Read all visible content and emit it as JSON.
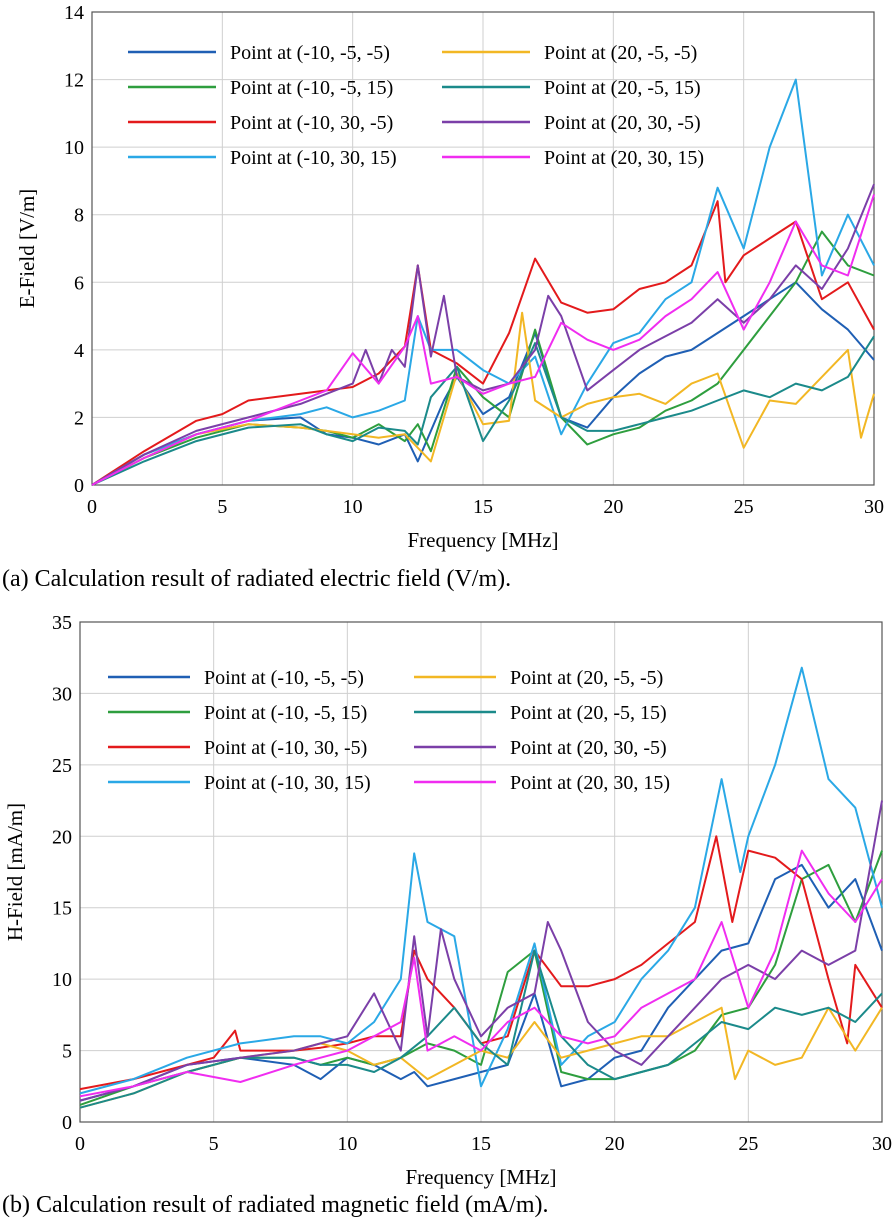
{
  "figure": {
    "caption_a": "(a) Calculation result of radiated electric field (V/m).",
    "caption_b": "(b) Calculation result of radiated magnetic field (mA/m)."
  },
  "chart_data": [
    {
      "type": "line",
      "xlabel": "Frequency [MHz]",
      "ylabel": "E-Field [V/m]",
      "xlim": [
        0,
        30
      ],
      "ylim": [
        0,
        14
      ],
      "xticks": [
        "0",
        "5",
        "10",
        "15",
        "20",
        "25",
        "30"
      ],
      "yticks": [
        "0",
        "2",
        "4",
        "6",
        "8",
        "10",
        "12",
        "14"
      ],
      "grid": true,
      "legend_position": "top-left",
      "series": [
        {
          "name": "Point at (-10, -5, -5)",
          "color": "#1f5fb4",
          "x": [
            0,
            2,
            4,
            6,
            8,
            9,
            10,
            11,
            12,
            12.5,
            13,
            13.5,
            14,
            15,
            16,
            17,
            18,
            19,
            20,
            21,
            22,
            23,
            24,
            25,
            26,
            27,
            28,
            29,
            30
          ],
          "y": [
            0,
            0.9,
            1.5,
            1.9,
            2.0,
            1.5,
            1.4,
            1.2,
            1.5,
            0.7,
            1.6,
            2.5,
            3.2,
            2.1,
            2.6,
            4.5,
            2.0,
            1.7,
            2.6,
            3.3,
            3.8,
            4.0,
            4.5,
            5.0,
            5.5,
            6.0,
            5.2,
            4.6,
            3.7
          ]
        },
        {
          "name": "Point at (-10, -5, 15)",
          "color": "#2e9e3e",
          "x": [
            0,
            2,
            4,
            6,
            8,
            9,
            10,
            11,
            12,
            12.5,
            13,
            14,
            15,
            16,
            17,
            18,
            19,
            20,
            21,
            22,
            23,
            24,
            25,
            26,
            27,
            28,
            29,
            30
          ],
          "y": [
            0,
            0.8,
            1.4,
            1.8,
            1.7,
            1.6,
            1.4,
            1.8,
            1.3,
            1.8,
            1.0,
            3.5,
            2.6,
            2.0,
            4.6,
            2.0,
            1.2,
            1.5,
            1.7,
            2.2,
            2.5,
            3.0,
            4.0,
            5.0,
            6.0,
            7.5,
            6.5,
            6.2
          ]
        },
        {
          "name": "Point at (-10, 30, -5)",
          "color": "#e31a1c",
          "x": [
            0,
            2,
            4,
            5,
            6,
            8,
            9,
            10,
            11,
            12,
            12.5,
            13,
            14,
            15,
            16,
            17,
            18,
            19,
            20,
            21,
            22,
            23,
            24,
            24.3,
            25,
            26,
            27,
            28,
            29,
            30
          ],
          "y": [
            0,
            1.0,
            1.9,
            2.1,
            2.5,
            2.7,
            2.8,
            2.9,
            3.3,
            4.1,
            6.5,
            4.0,
            3.6,
            3.0,
            4.5,
            6.7,
            5.4,
            5.1,
            5.2,
            5.8,
            6.0,
            6.5,
            8.4,
            6.0,
            6.8,
            7.3,
            7.8,
            5.5,
            6.0,
            4.6
          ]
        },
        {
          "name": "Point at (-10, 30, 15)",
          "color": "#2aa8e6",
          "x": [
            0,
            2,
            4,
            6,
            8,
            9,
            10,
            11,
            12,
            12.5,
            13,
            14,
            15,
            16,
            17,
            18,
            19,
            20,
            21,
            22,
            23,
            24,
            25,
            26,
            27,
            28,
            29,
            30
          ],
          "y": [
            0,
            0.9,
            1.5,
            1.9,
            2.1,
            2.3,
            2.0,
            2.2,
            2.5,
            5.0,
            4.0,
            4.0,
            3.4,
            3.0,
            3.8,
            1.5,
            3.0,
            4.2,
            4.5,
            5.5,
            6.0,
            8.8,
            7.0,
            10.0,
            12.0,
            6.2,
            8.0,
            6.5
          ]
        },
        {
          "name": "Point at (20, -5, -5)",
          "color": "#f2b724",
          "x": [
            0,
            2,
            4,
            6,
            8,
            9,
            10,
            11,
            12,
            13,
            13.5,
            14,
            15,
            16,
            16.5,
            17,
            18,
            19,
            20,
            21,
            22,
            23,
            24,
            25,
            26,
            27,
            28,
            29,
            29.5,
            30
          ],
          "y": [
            0,
            0.8,
            1.5,
            1.8,
            1.7,
            1.6,
            1.5,
            1.4,
            1.5,
            0.7,
            2.0,
            3.3,
            1.8,
            1.9,
            5.1,
            2.5,
            2.0,
            2.4,
            2.6,
            2.7,
            2.4,
            3.0,
            3.3,
            1.1,
            2.5,
            2.4,
            3.2,
            4.0,
            1.4,
            2.7
          ]
        },
        {
          "name": "Point at (20, -5, 15)",
          "color": "#1b8a8a",
          "x": [
            0,
            2,
            4,
            6,
            8,
            9,
            10,
            11,
            12,
            12.5,
            13,
            14,
            15,
            16,
            17,
            18,
            19,
            20,
            21,
            22,
            23,
            24,
            25,
            26,
            27,
            28,
            29,
            30
          ],
          "y": [
            0,
            0.7,
            1.3,
            1.7,
            1.8,
            1.5,
            1.3,
            1.7,
            1.6,
            1.2,
            2.6,
            3.5,
            1.3,
            2.5,
            4.2,
            2.0,
            1.6,
            1.6,
            1.8,
            2.0,
            2.2,
            2.5,
            2.8,
            2.6,
            3.0,
            2.8,
            3.2,
            4.4
          ]
        },
        {
          "name": "Point at (20, 30, -5)",
          "color": "#7b3fa8",
          "x": [
            0,
            2,
            4,
            6,
            8,
            9,
            10,
            10.5,
            11,
            11.5,
            12,
            12.5,
            13,
            13.5,
            14,
            15,
            16,
            17,
            17.5,
            18,
            19,
            20,
            21,
            22,
            23,
            24,
            25,
            26,
            27,
            28,
            29,
            30
          ],
          "y": [
            0,
            0.9,
            1.6,
            2.0,
            2.4,
            2.7,
            3.0,
            4.0,
            3.0,
            4.0,
            3.5,
            6.5,
            3.8,
            5.6,
            3.2,
            2.8,
            3.0,
            4.0,
            5.6,
            5.0,
            2.8,
            3.4,
            4.0,
            4.4,
            4.8,
            5.5,
            4.8,
            5.5,
            6.5,
            5.8,
            7.0,
            8.9
          ]
        },
        {
          "name": "Point at (20, 30, 15)",
          "color": "#f02df0",
          "x": [
            0,
            2,
            4,
            6,
            8,
            9,
            10,
            11,
            12,
            12.5,
            13,
            14,
            15,
            16,
            17,
            18,
            19,
            20,
            21,
            22,
            23,
            24,
            25,
            26,
            27,
            28,
            29,
            30
          ],
          "y": [
            0,
            0.8,
            1.5,
            1.9,
            2.5,
            2.8,
            3.9,
            3.0,
            4.1,
            5.0,
            3.0,
            3.2,
            2.7,
            3.0,
            3.2,
            4.8,
            4.3,
            4.0,
            4.3,
            5.0,
            5.5,
            6.3,
            4.6,
            6.0,
            7.8,
            6.5,
            6.2,
            8.6
          ]
        }
      ]
    },
    {
      "type": "line",
      "xlabel": "Frequency [MHz]",
      "ylabel": "H-Field [mA/m]",
      "xlim": [
        0,
        30
      ],
      "ylim": [
        0,
        35
      ],
      "xticks": [
        "0",
        "5",
        "10",
        "15",
        "20",
        "25",
        "30"
      ],
      "yticks": [
        "0",
        "5",
        "10",
        "15",
        "20",
        "25",
        "30",
        "35"
      ],
      "grid": true,
      "legend_position": "top-left",
      "series": [
        {
          "name": "Point at (-10, -5, -5)",
          "color": "#1f5fb4",
          "x": [
            0,
            2,
            4,
            6,
            8,
            9,
            10,
            11,
            12,
            12.5,
            13,
            14,
            15,
            16,
            17,
            18,
            19,
            20,
            21,
            22,
            23,
            24,
            25,
            26,
            27,
            28,
            29,
            30
          ],
          "y": [
            1.5,
            2.5,
            4.0,
            4.5,
            4.0,
            3.0,
            4.5,
            4.0,
            3.0,
            3.5,
            2.5,
            3.0,
            3.5,
            4.0,
            9.0,
            2.5,
            3.0,
            4.5,
            5.0,
            8.0,
            10.0,
            12.0,
            12.5,
            17.0,
            18.0,
            15.0,
            17.0,
            12.0
          ]
        },
        {
          "name": "Point at (-10, -5, 15)",
          "color": "#2e9e3e",
          "x": [
            0,
            2,
            4,
            6,
            8,
            9,
            10,
            11,
            12,
            13,
            14,
            15,
            16,
            17,
            18,
            19,
            20,
            21,
            22,
            23,
            24,
            25,
            26,
            27,
            28,
            29,
            30
          ],
          "y": [
            1.2,
            2.5,
            3.5,
            4.5,
            4.5,
            4.0,
            4.5,
            4.0,
            4.5,
            5.5,
            5.0,
            4.0,
            10.5,
            12.0,
            3.5,
            3.0,
            3.0,
            3.5,
            4.0,
            5.0,
            7.5,
            8.0,
            11.0,
            17.0,
            18.0,
            14.0,
            19.0
          ]
        },
        {
          "name": "Point at (-10, 30, -5)",
          "color": "#e31a1c",
          "x": [
            0,
            2,
            4,
            5,
            5.8,
            6,
            8,
            9,
            10,
            11,
            12,
            12.5,
            13,
            14,
            15,
            16,
            17,
            18,
            19,
            20,
            21,
            22,
            23,
            23.8,
            24.4,
            25,
            26,
            27,
            28,
            28.7,
            29,
            30
          ],
          "y": [
            2.3,
            3.0,
            4.0,
            4.5,
            6.4,
            5.0,
            5.0,
            5.2,
            5.5,
            6.0,
            6.0,
            12.0,
            10.0,
            8.0,
            5.5,
            6.0,
            12.0,
            9.5,
            9.5,
            10.0,
            11.0,
            12.5,
            14.0,
            20.0,
            14.0,
            19.0,
            18.5,
            17.0,
            10.0,
            5.5,
            11.0,
            8.0
          ]
        },
        {
          "name": "Point at (-10, 30, 15)",
          "color": "#2aa8e6",
          "x": [
            0,
            2,
            4,
            6,
            8,
            9,
            10,
            11,
            12,
            12.5,
            13,
            14,
            15,
            16,
            17,
            18,
            19,
            20,
            21,
            22,
            23,
            24,
            24.7,
            25,
            26,
            27,
            28,
            29,
            30
          ],
          "y": [
            2.0,
            3.0,
            4.5,
            5.5,
            6.0,
            6.0,
            5.5,
            7.0,
            10.0,
            18.8,
            14.0,
            13.0,
            2.5,
            6.5,
            12.5,
            4.0,
            6.0,
            7.0,
            10.0,
            12.0,
            15.0,
            24.0,
            17.5,
            20.0,
            25.0,
            31.8,
            24.0,
            22.0,
            15.0
          ]
        },
        {
          "name": "Point at (20, -5, -5)",
          "color": "#f2b724",
          "x": [
            0,
            2,
            4,
            6,
            8,
            9,
            10,
            11,
            12,
            13,
            14,
            15,
            16,
            17,
            18,
            19,
            20,
            21,
            22,
            23,
            24,
            24.5,
            25,
            26,
            27,
            28,
            29,
            30
          ],
          "y": [
            1.0,
            2.0,
            3.5,
            4.5,
            5.0,
            5.5,
            5.0,
            4.0,
            4.5,
            3.0,
            4.0,
            5.0,
            4.5,
            7.0,
            4.5,
            5.0,
            5.5,
            6.0,
            6.0,
            7.0,
            8.0,
            3.0,
            5.0,
            4.0,
            4.5,
            8.0,
            5.0,
            8.0
          ]
        },
        {
          "name": "Point at (20, -5, 15)",
          "color": "#1b8a8a",
          "x": [
            0,
            2,
            4,
            6,
            8,
            9,
            10,
            11,
            12,
            13,
            14,
            15,
            16,
            17,
            18,
            19,
            20,
            21,
            22,
            23,
            24,
            25,
            26,
            27,
            28,
            29,
            30
          ],
          "y": [
            1.0,
            2.0,
            3.5,
            4.5,
            4.5,
            4.0,
            4.0,
            3.5,
            4.5,
            6.0,
            8.0,
            5.5,
            4.0,
            12.0,
            6.0,
            4.0,
            3.0,
            3.5,
            4.0,
            5.5,
            7.0,
            6.5,
            8.0,
            7.5,
            8.0,
            7.0,
            9.0
          ]
        },
        {
          "name": "Point at (20, 30, -5)",
          "color": "#7b3fa8",
          "x": [
            0,
            2,
            4,
            6,
            8,
            9,
            10,
            11,
            12,
            12.5,
            13,
            13.5,
            14,
            15,
            16,
            17,
            17.5,
            18,
            19,
            20,
            21,
            22,
            23,
            24,
            25,
            26,
            27,
            28,
            29,
            30
          ],
          "y": [
            1.5,
            2.5,
            4.0,
            4.5,
            5.0,
            5.5,
            6.0,
            9.0,
            5.0,
            13.0,
            6.0,
            13.5,
            10.0,
            6.0,
            8.0,
            9.0,
            14.0,
            12.0,
            7.0,
            5.0,
            4.0,
            6.0,
            8.0,
            10.0,
            11.0,
            10.0,
            12.0,
            11.0,
            12.0,
            22.5
          ]
        },
        {
          "name": "Point at (20, 30, 15)",
          "color": "#f02df0",
          "x": [
            0,
            2,
            4,
            6,
            8,
            9,
            10,
            11,
            12,
            12.5,
            13,
            14,
            15,
            16,
            17,
            18,
            19,
            20,
            21,
            22,
            23,
            24,
            25,
            26,
            27,
            28,
            29,
            30
          ],
          "y": [
            1.8,
            2.5,
            3.5,
            2.8,
            4.0,
            4.5,
            5.0,
            6.0,
            7.0,
            11.5,
            5.0,
            6.0,
            5.0,
            7.0,
            8.0,
            6.0,
            5.5,
            6.0,
            8.0,
            9.0,
            10.0,
            14.0,
            8.0,
            12.0,
            19.0,
            16.0,
            14.0,
            17.0
          ]
        }
      ]
    }
  ]
}
